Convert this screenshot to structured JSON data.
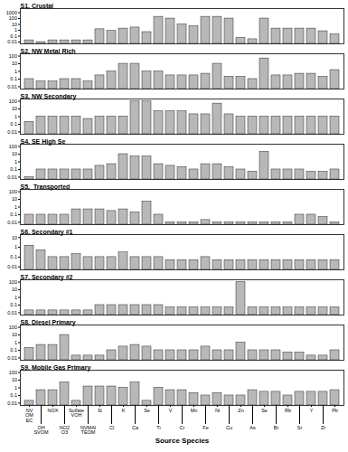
{
  "chart_data": [
    {
      "type": "bar",
      "title": "S1, Crustal",
      "categories": [
        "NV\nOM\nEC",
        "OH\nSVOM",
        "NOX",
        "NO2\nO3",
        "Sulfate\nVOH",
        "NVMAl\nTEOM",
        "Si",
        "Cl",
        "K",
        "Ca",
        "Se",
        "Ti",
        "V",
        "Cr",
        "Mn",
        "Fe",
        "Ni",
        "Cu",
        "Zn",
        "As",
        "Se",
        "Br",
        "Rb",
        "Sr",
        "Y",
        "Zr",
        "Pb"
      ],
      "values": [
        0.02,
        0.01,
        0.02,
        0.02,
        0.02,
        0.02,
        1.5,
        0.8,
        2.0,
        3.0,
        0.5,
        200,
        100,
        10,
        5,
        200,
        200,
        100,
        0.05,
        0.03,
        100,
        2.0,
        2.0,
        2.0,
        2.0,
        0.7,
        0.2
      ],
      "color": "#b8b8b8",
      "log": "y",
      "ylim": [
        0.005,
        5000
      ],
      "yticks": [
        0.01,
        0.1,
        1,
        10,
        100,
        1000
      ],
      "grid": false,
      "tick_labels": "y"
    },
    {
      "type": "bar",
      "title": "S2, NW Metal Rich",
      "categories": [
        "NV\nOM\nEC",
        "OH\nSVOM",
        "NOX",
        "NO2\nO3",
        "Sulfate\nVOH",
        "NVMAl\nTEOM",
        "Si",
        "Cl",
        "K",
        "Ca",
        "Se",
        "Ti",
        "V",
        "Cr",
        "Mn",
        "Fe",
        "Ni",
        "Cu",
        "Zn",
        "As",
        "Se",
        "Br",
        "Rb",
        "Sr",
        "Y",
        "Zr",
        "Pb"
      ],
      "values": [
        0.1,
        0.05,
        0.05,
        0.1,
        0.1,
        0.05,
        0.3,
        1.0,
        10,
        10,
        1.0,
        1.0,
        0.3,
        0.3,
        0.3,
        0.5,
        10,
        0.2,
        0.2,
        0.1,
        50,
        0.3,
        0.3,
        0.5,
        0.5,
        0.2,
        1.5
      ],
      "color": "#b8b8b8",
      "log": "y",
      "ylim": [
        0.005,
        200
      ],
      "yticks": [
        0.01,
        0.1,
        1,
        10,
        100
      ],
      "grid": false,
      "tick_labels": "y"
    },
    {
      "type": "bar",
      "title": "S3, NW Secondary",
      "categories": [
        "NV\nOM\nEC",
        "OH\nSVOM",
        "NOX",
        "NO2\nO3",
        "Sulfate\nVOH",
        "NVMAl\nTEOM",
        "Si",
        "Cl",
        "K",
        "Ca",
        "Se",
        "Ti",
        "V",
        "Cr",
        "Mn",
        "Fe",
        "Ni",
        "Cu",
        "Zn",
        "As",
        "Se",
        "Br",
        "Rb",
        "Sr",
        "Y",
        "Zr",
        "Pb"
      ],
      "values": [
        0.2,
        1.0,
        1.0,
        1.0,
        1.0,
        0.5,
        1.0,
        1.0,
        1.0,
        100,
        100,
        5,
        5,
        5,
        2,
        2,
        50,
        2,
        1.0,
        1.0,
        1.0,
        1.0,
        1.0,
        1.0,
        1.0,
        1.0,
        1.0
      ],
      "color": "#b8b8b8",
      "log": "y",
      "ylim": [
        0.005,
        200
      ],
      "yticks": [
        0.01,
        0.1,
        1,
        10,
        100
      ],
      "grid": false,
      "tick_labels": "y"
    },
    {
      "type": "bar",
      "title": "S4, SE High Se",
      "categories": [
        "NV\nOM\nEC",
        "OH\nSVOM",
        "NOX",
        "NO2\nO3",
        "Sulfate\nVOH",
        "NVMAl\nTEOM",
        "Si",
        "Cl",
        "K",
        "Ca",
        "Se",
        "Ti",
        "V",
        "Cr",
        "Mn",
        "Fe",
        "Ni",
        "Cu",
        "Zn",
        "As",
        "Se",
        "Br",
        "Rb",
        "Sr",
        "Y",
        "Zr",
        "Pb"
      ],
      "values": [
        0.01,
        0.1,
        0.1,
        0.1,
        0.1,
        0.1,
        0.3,
        0.5,
        10,
        5,
        5,
        0.5,
        0.3,
        0.2,
        0.1,
        0.5,
        0.5,
        0.2,
        0.1,
        0.05,
        20,
        0.1,
        0.1,
        0.1,
        0.05,
        0.05,
        0.1
      ],
      "color": "#b8b8b8",
      "log": "y",
      "ylim": [
        0.005,
        200
      ],
      "yticks": [
        0.01,
        0.1,
        1,
        10,
        100
      ],
      "grid": false,
      "tick_labels": "y"
    },
    {
      "type": "bar",
      "title": "S5,  Transported",
      "categories": [
        "NV\nOM\nEC",
        "OH\nSVOM",
        "NOX",
        "NO2\nO3",
        "Sulfate\nVOH",
        "NVMAl\nTEOM",
        "Si",
        "Cl",
        "K",
        "Ca",
        "Se",
        "Ti",
        "V",
        "Cr",
        "Mn",
        "Fe",
        "Ni",
        "Cu",
        "Zn",
        "As",
        "Se",
        "Br",
        "Rb",
        "Sr",
        "Y",
        "Zr",
        "Pb"
      ],
      "values": [
        0.1,
        0.1,
        0.1,
        0.1,
        0.5,
        0.5,
        0.5,
        0.3,
        0.5,
        0.2,
        5,
        0.1,
        0.01,
        0.01,
        0.01,
        0.02,
        0.01,
        0.01,
        0.01,
        0.01,
        0.01,
        0.01,
        0.01,
        0.1,
        0.1,
        0.05,
        0.01
      ],
      "color": "#b8b8b8",
      "log": "y",
      "ylim": [
        0.005,
        200
      ],
      "yticks": [
        0.01,
        0.1,
        1,
        10,
        100
      ],
      "grid": false,
      "tick_labels": "y"
    },
    {
      "type": "bar",
      "title": "S6, Secondary #1",
      "categories": [
        "NV\nOM\nEC",
        "OH\nSVOM",
        "NOX",
        "NO2\nO3",
        "Sulfate\nVOH",
        "NVMAl\nTEOM",
        "Si",
        "Cl",
        "K",
        "Ca",
        "Se",
        "Ti",
        "V",
        "Cr",
        "Mn",
        "Fe",
        "Ni",
        "Cu",
        "Zn",
        "As",
        "Se",
        "Br",
        "Rb",
        "Sr",
        "Y",
        "Zr",
        "Pb"
      ],
      "values": [
        1.5,
        0.5,
        0.1,
        0.1,
        0.2,
        0.1,
        0.1,
        0.1,
        0.3,
        0.1,
        0.1,
        0.1,
        0.05,
        0.05,
        0.05,
        0.1,
        0.05,
        0.05,
        0.05,
        0.05,
        0.05,
        0.05,
        0.05,
        0.05,
        0.05,
        0.05,
        0.05
      ],
      "color": "#b8b8b8",
      "log": "y",
      "ylim": [
        0.005,
        20
      ],
      "yticks": [
        0.01,
        0.1,
        1,
        10
      ],
      "grid": false,
      "tick_labels": "y"
    },
    {
      "type": "bar",
      "title": "S7, Secondary #2",
      "categories": [
        "NV\nOM\nEC",
        "OH\nSVOM",
        "NOX",
        "NO2\nO3",
        "Sulfate\nVOH",
        "NVMAl\nTEOM",
        "Si",
        "Cl",
        "K",
        "Ca",
        "Se",
        "Ti",
        "V",
        "Cr",
        "Mn",
        "Fe",
        "Ni",
        "Cu",
        "Zn",
        "As",
        "Se",
        "Br",
        "Rb",
        "Sr",
        "Y",
        "Zr",
        "Pb"
      ],
      "values": [
        0.02,
        0.02,
        0.02,
        0.02,
        0.02,
        0.02,
        0.1,
        0.1,
        0.1,
        0.1,
        0.1,
        0.1,
        0.05,
        0.05,
        0.05,
        0.05,
        0.05,
        0.05,
        100,
        0.05,
        0.05,
        0.05,
        0.05,
        0.05,
        0.05,
        0.05,
        0.05
      ],
      "color": "#b8b8b8",
      "log": "y",
      "ylim": [
        0.005,
        200
      ],
      "yticks": [
        0.01,
        0.1,
        1,
        10,
        100
      ],
      "grid": false,
      "tick_labels": "y"
    },
    {
      "type": "bar",
      "title": "S8, Diesel Primary",
      "categories": [
        "NV\nOM\nEC",
        "OH\nSVOM",
        "NOX",
        "NO2\nO3",
        "Sulfate\nVOH",
        "NVMAl\nTEOM",
        "Si",
        "Cl",
        "K",
        "Ca",
        "Se",
        "Ti",
        "V",
        "Cr",
        "Mn",
        "Fe",
        "Ni",
        "Cu",
        "Zn",
        "As",
        "Se",
        "Br",
        "Rb",
        "Sr",
        "Y",
        "Zr",
        "Pb"
      ],
      "values": [
        0.2,
        0.5,
        0.5,
        10,
        0.02,
        0.02,
        0.02,
        0.1,
        0.3,
        0.5,
        0.3,
        0.1,
        0.1,
        0.1,
        0.1,
        0.3,
        0.1,
        0.1,
        1.0,
        0.1,
        0.1,
        0.1,
        0.05,
        0.05,
        0.02,
        0.02,
        0.1
      ],
      "color": "#b8b8b8",
      "log": "y",
      "ylim": [
        0.005,
        200
      ],
      "yticks": [
        0.01,
        0.1,
        1,
        10,
        100
      ],
      "grid": false,
      "tick_labels": "y"
    },
    {
      "type": "bar",
      "title": "S9, Mobile Gas Primary",
      "categories": [
        "NV\nOM\nEC",
        "OH\nSVOM",
        "NOX",
        "NO2\nO3",
        "Sulfate\nVOH",
        "NVMAl\nTEOM",
        "Si",
        "Cl",
        "K",
        "Ca",
        "Se",
        "Ti",
        "V",
        "Cr",
        "Mn",
        "Fe",
        "Ni",
        "Cu",
        "Zn",
        "As",
        "Se",
        "Br",
        "Rb",
        "Sr",
        "Y",
        "Zr",
        "Pb"
      ],
      "values": [
        0.02,
        0.5,
        0.5,
        5.0,
        0.02,
        1.5,
        1.5,
        1.5,
        1.0,
        5.0,
        0.02,
        1.0,
        0.5,
        0.5,
        0.2,
        0.1,
        0.2,
        0.1,
        0.1,
        0.5,
        0.3,
        0.3,
        0.1,
        0.3,
        0.3,
        0.3,
        0.5
      ],
      "color": "#b8b8b8",
      "log": "y",
      "ylim": [
        0.005,
        200
      ],
      "yticks": [
        0.01,
        0.1,
        1,
        10,
        100
      ],
      "grid": false,
      "xlabel": "Source Species"
    }
  ]
}
